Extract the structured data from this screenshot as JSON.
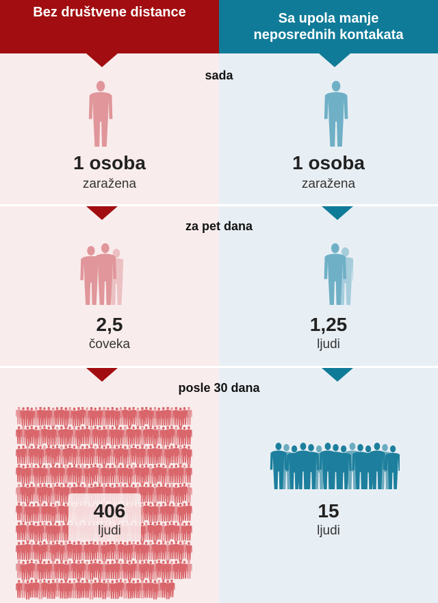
{
  "headers": {
    "left": "Bez društvene distance",
    "right": "Sa upola manje neposrednih kontakata"
  },
  "sections": [
    {
      "label": "sada",
      "left": {
        "value": "1 osoba",
        "caption": "zaražena",
        "people": 1
      },
      "right": {
        "value": "1 osoba",
        "caption": "zaražena",
        "people": 1
      }
    },
    {
      "label": "za pet dana",
      "left": {
        "value": "2,5",
        "caption": "čoveka",
        "people": 2.5
      },
      "right": {
        "value": "1,25",
        "caption": "ljudi",
        "people": 1.25
      }
    },
    {
      "label": "posle 30 dana",
      "left": {
        "value": "406",
        "caption": "ljudi",
        "people": 406
      },
      "right": {
        "value": "15",
        "caption": "ljudi",
        "people": 15
      }
    }
  ],
  "colors": {
    "red": "#a10d10",
    "blue": "#107b98",
    "red_person": "#e0969a",
    "red_person_crowd": "#d9666b",
    "blue_person": "#6fb0c6",
    "blue_person_crowd": "#1d7f9d"
  }
}
